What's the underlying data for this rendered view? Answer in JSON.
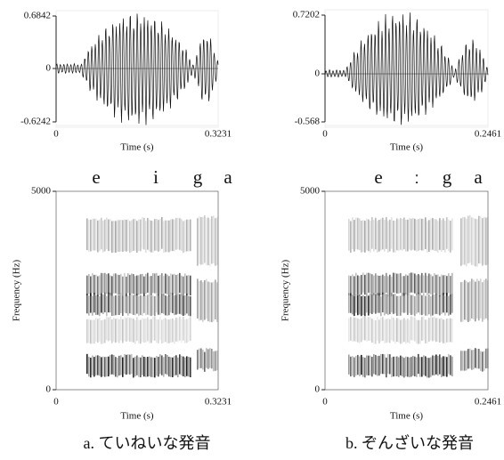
{
  "panels": [
    {
      "waveform": {
        "y_max": "0.6842",
        "y_zero": "0",
        "y_min": "-0.6242",
        "x_start": "0",
        "x_end": "0.3231",
        "x_label": "Time (s)"
      },
      "segments": [
        "e",
        "i",
        "g",
        "a"
      ],
      "spectrogram": {
        "y_max": "5000",
        "y_min": "0",
        "y_label": "Frequency (Hz)",
        "x_start": "0",
        "x_end": "0.3231",
        "x_label": "Time (s)"
      },
      "caption": "a. ていねいな発音"
    },
    {
      "waveform": {
        "y_max": "0.7202",
        "y_zero": "0",
        "y_min": "-0.568",
        "x_start": "0",
        "x_end": "0.2461",
        "x_label": "Time (s)"
      },
      "segments": [
        "e",
        "ː",
        "g",
        "a"
      ],
      "spectrogram": {
        "y_max": "5000",
        "y_min": "0",
        "y_label": "Frequency (Hz)",
        "x_start": "0",
        "x_end": "0.2461",
        "x_label": "Time (s)"
      },
      "caption": "b. ぞんざいな発音"
    }
  ]
}
